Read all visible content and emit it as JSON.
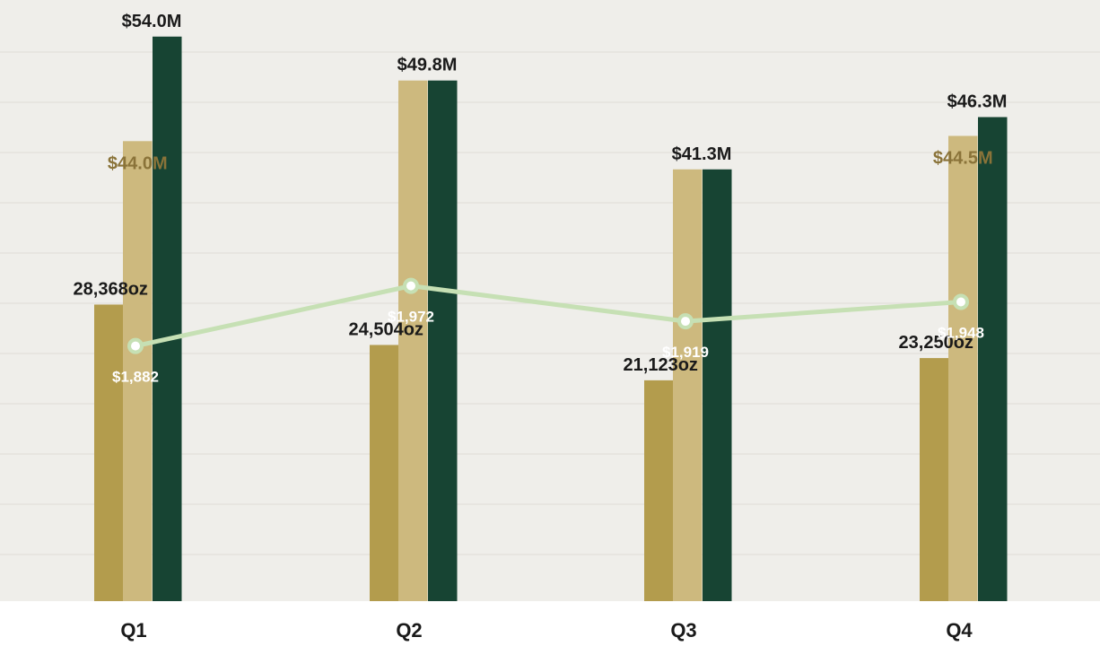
{
  "colors": {
    "plot_bg": "#efeeea",
    "gridline": "#e2e0db",
    "ounces": "#b39c4d",
    "revenue_light": "#cdb97e",
    "revenue_dark": "#174433",
    "price_line": "#c6e0b4",
    "label_dark": "#1a1a1a",
    "label_gold": "#8a7339",
    "label_white": "#ffffff"
  },
  "chart_data": {
    "type": "bar",
    "categories": [
      "Q1",
      "Q2",
      "Q3",
      "Q4"
    ],
    "scale": {
      "ounces_per_pixel_unit": 1,
      "ounces_max": 57500,
      "revenue_max": 57.5
    },
    "series": [
      {
        "key": "ounces",
        "kind": "bar",
        "values": [
          28368,
          24504,
          21123,
          23250
        ],
        "labels": [
          "28,368oz",
          "24,504oz",
          "21,123oz",
          "23,250oz"
        ]
      },
      {
        "key": "revenue_light",
        "kind": "bar",
        "values": [
          44.0,
          49.8,
          41.3,
          44.5
        ],
        "labels": [
          "$44.0M",
          "",
          "",
          "$44.5M"
        ]
      },
      {
        "key": "revenue_dark",
        "kind": "bar",
        "values": [
          54.0,
          49.8,
          41.3,
          46.3
        ],
        "labels": [
          "$54.0M",
          "$49.8M",
          "$41.3M",
          "$46.3M"
        ]
      },
      {
        "key": "price",
        "kind": "line",
        "values": [
          1882,
          1972,
          1919,
          1948
        ],
        "labels": [
          "$1,882",
          "$1,972",
          "$1,919",
          "$1,948"
        ]
      }
    ],
    "price_axis_range": [
      1500,
      2400
    ],
    "grid": true,
    "legend": "none"
  }
}
